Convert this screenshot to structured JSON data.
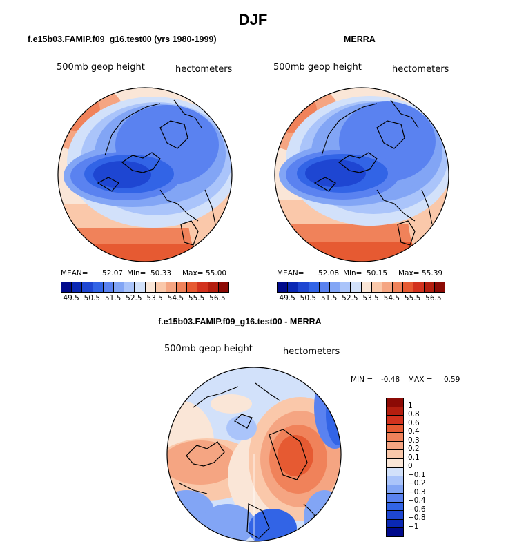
{
  "figure": {
    "title": "DJF",
    "left_panel_title": "f.e15b03.FAMIP.f09_g16.test00 (yrs 1980-1999)",
    "right_panel_title": "MERRA",
    "diff_panel_title": "f.e15b03.FAMIP.f09_g16.test00 - MERRA",
    "variable_label": "500mb geop height",
    "units_label": "hectometers"
  },
  "panels": {
    "left": {
      "mean_label": "MEAN=",
      "mean": "52.07",
      "min_label": "Min=",
      "min": "50.33",
      "max_label": "Max=",
      "max": "55.00"
    },
    "right": {
      "mean_label": "MEAN=",
      "mean": "52.08",
      "min_label": "Min=",
      "min": "50.15",
      "max_label": "Max=",
      "max": "55.39"
    },
    "diff": {
      "min_label": "MIN =",
      "min": "-0.48",
      "max_label": "MAX =",
      "max": "0.59"
    }
  },
  "colorbars": {
    "abs_labels": [
      "49.5",
      "50.5",
      "51.5",
      "52.5",
      "53.5",
      "54.5",
      "55.5",
      "56.5"
    ],
    "abs_colors": [
      "#000a8c",
      "#0a28b4",
      "#1e46d2",
      "#3264e6",
      "#5a82f0",
      "#82a5f5",
      "#aac4fa",
      "#d2e1fa",
      "#fae6d7",
      "#fac8aa",
      "#f5a582",
      "#f0825a",
      "#e65a32",
      "#d2321e",
      "#b41e0f",
      "#8c0a05"
    ],
    "diff_labels": [
      "1",
      "0.8",
      "0.6",
      "0.4",
      "0.3",
      "0.2",
      "0.1",
      "0",
      "−0.1",
      "−0.2",
      "−0.3",
      "−0.4",
      "−0.6",
      "−0.8",
      "−1"
    ],
    "diff_colors": [
      "#8c0a05",
      "#b41e0f",
      "#d2321e",
      "#e65a32",
      "#f0825a",
      "#f5a582",
      "#fac8aa",
      "#fae6d7",
      "#d2e1fa",
      "#aac4fa",
      "#82a5f5",
      "#5a82f0",
      "#3264e6",
      "#1e46d2",
      "#0a28b4",
      "#000a8c"
    ]
  }
}
